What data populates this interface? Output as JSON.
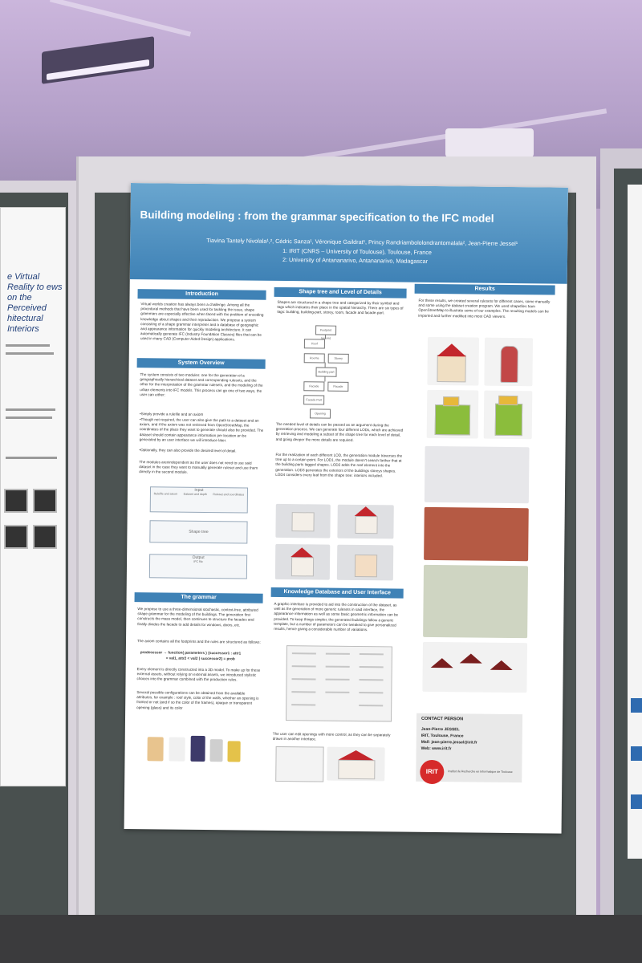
{
  "poster": {
    "title": "Building modeling : from the grammar specification to the IFC model",
    "authors": "Tiavina Tantely Nivolala¹,², Cédric Sanza¹, Véronique Gaildrat¹, Princy Randriambololondrantomalala², Jean-Pierre Jessel¹",
    "affiliation_1": "1: IRIT (CNRS – University of Toulouse), Toulouse, France",
    "affiliation_2": "2: University of Antananarivo, Antananarivo, Madagascar",
    "sections": {
      "introduction": {
        "heading": "Introduction",
        "text": "Virtual worlds creation has always been a challenge. Among all the procedural methods that have been used for tackling the issue, shape grammars are especially effective when faced with the problem of encoding knowledge about shapes and their reproduction. We propose a system consisting of a shape grammar interpreter and a database of geographic and appearance information for quickly modeling architecture. It can automatically generate IFC (Industry Foundation Classes) files that can be used in many CAD (Computer Aided Design) applications."
      },
      "system_overview": {
        "heading": "System Overview",
        "text": "The system consists of two modules: one for the generation of a geographically hierarchical dataset and corresponding rulesets, and the other for the interpretation of the grammar rulesets, and the modeling of the urban elements into IFC models. This process can go one of two ways, the user can either:",
        "bullets": [
          "•Simply provide a rulefile and an axiom",
          "•Though not required, the user can also give the path to a dataset and an axiom, and if the axiom was not retrieved from OpenStreetMap, the coordinates of the place they want to generate should also be provided. The dataset should contain appearance information per location an be generated by an user interface we will introduce later.",
          "•Optionally, they can also provide the desired level of detail."
        ],
        "text2": "The modules arenindependent as the user does not need to use said dataset in the case they want to manually generate ruleset and use them directly in the second module.",
        "diagram": {
          "input": "Input",
          "input_items": [
            "Rulefile and axiom",
            "Dataset and depth",
            "Ruleset and coordinates"
          ],
          "shape_tree": "Shape tree",
          "output": "Output",
          "output_item": "IFC file"
        }
      },
      "grammar": {
        "heading": "The grammar",
        "text": "We propose to use a three-dimensional stochastic, context-free, attributed shape grammar for the modeling of the buildings. The generation first constructs the mass model, then continues to structure the facades and finally divides the facade to add details for windows, doors, etc.",
        "text2": "The axiom contains all the footprints and the rules are structured as follows:",
        "rule_line1": "predecessor → function( parameters ) {successor1 : attr1",
        "rule_line2": "= val1, attr2 < val2 | successor2} = prob",
        "text3": "Every element is directly constructed into a 3D model. To make up for these external assets, without relying on external assets, we introduced stylistic choices into the grammar combined with the production rules.",
        "text4": "Several possible configurations can be obtained from the available attributes, for example : roof style, color of the walls, whether an opening is framed or not (and if so the color of the frames), opaque or transparent opening (glass) and its color"
      },
      "shape_tree": {
        "heading": "Shape tree and Level of Details",
        "text": "Shapes are structured in a shape tree and categorized by their symbol and tags which indicates their place in the spatial hierarchy. There are six types of tags: building, building-part, storey, room, facade and facade-part.",
        "tree_nodes": [
          "Footprint (axiom)",
          "Roof",
          "Rooms",
          "Storey",
          "Building part",
          "Facade",
          "Facade",
          "Facade Part",
          "Opening"
        ],
        "text2": "The needed level of details can be passed as an argument during the generation process. We can generate four different LODs, which are achieved by retrieving and modeling a subset of the shape tree for each level of detail, and going deeper the more details are required.",
        "text3": "For the realization of each different LOD, the generation module traverses the tree up to a certain point. For LOD1, the module doesn't search farther that at the building parts tagged shapes. LOD2 adds the roof element into the generation. LOD3 generates the exteriors of the buildings storeys shapes. LOD4 considers every leaf from the shape tree: interiors included."
      },
      "knowledge": {
        "heading": "Knowledge Database and User Interface",
        "text": "A graphic interface is provided to aid into the construction of the dataset, as well as the generation of more generic rulesets in said interface, the appearance information as well as some basic geometric information can be provided. To keep things simpler, the generated buildings follow a generic template, but a number of parameters can be tweaked to give personalized results, hence giving a considerable number of variations.",
        "text2": "The user can edit openings with more control, as they can be separately drawn in another interface."
      },
      "results": {
        "heading": "Results",
        "text": "For these results, we created several rulesets for different cases, some manually and some using the dataset creation program. We used shapefiles from OpenStreetMap to illustrate some of our examples. The resulting models can be imported and further modified into most CAD viewers."
      },
      "contact": {
        "heading": "CONTACT PERSON",
        "name": "Jean-Pierre JESSEL",
        "org": "IRIT, Toulouse, France",
        "mail": "Mail: jean-pierre.jessel@irit.fr",
        "web": "Web: www.irit.fr",
        "logo": "IRIT",
        "logo_caption": "Institut de Recherche en Informatique de Toulouse"
      }
    }
  },
  "left_poster": {
    "title": "e Virtual Reality to ews on the Perceived hitectural Interiors"
  },
  "colors": {
    "header_blue": "#3f82b6",
    "roof_red": "#c3262c",
    "felt_gray": "#4c5352",
    "wall_purple": "#b9a6c9"
  }
}
